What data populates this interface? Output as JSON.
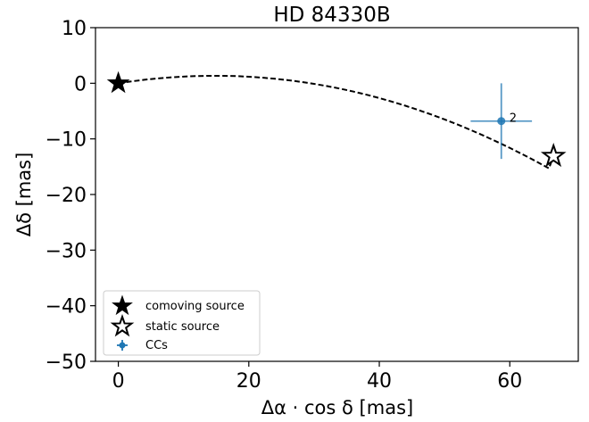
{
  "chart_data": {
    "type": "scatter",
    "title": "HD 84330B",
    "xlabel": "Δα · cos δ [mas]",
    "ylabel": "Δδ [mas]",
    "xlim": [
      -3.5,
      70.5
    ],
    "ylim": [
      -50,
      10
    ],
    "xticks": [
      0,
      20,
      40,
      60
    ],
    "yticks": [
      10,
      0,
      -10,
      -20,
      -30,
      -40,
      -50
    ],
    "grid": false,
    "legend_position": "lower-left",
    "legend": [
      {
        "label": "comoving source",
        "marker": "filled-star"
      },
      {
        "label": "static source",
        "marker": "open-star"
      },
      {
        "label": "CCs",
        "marker": "errorbar-point"
      }
    ],
    "comoving_source": {
      "x": 0,
      "y": 0
    },
    "static_source": {
      "x": 66.7,
      "y": -13.1
    },
    "track": {
      "style": "dashed",
      "x": [
        0,
        2,
        4,
        6,
        8,
        10,
        12,
        14,
        16,
        18,
        20,
        22,
        24,
        26,
        28,
        30,
        32,
        34,
        36,
        38,
        40,
        42,
        44,
        46,
        48,
        50,
        52,
        54,
        56,
        58,
        60,
        62,
        64,
        66,
        66.7
      ],
      "y": [
        0,
        0.34,
        0.63,
        0.87,
        1.06,
        1.2,
        1.3,
        1.34,
        1.34,
        1.29,
        1.18,
        1.02,
        0.81,
        0.56,
        0.25,
        -0.11,
        -0.51,
        -0.97,
        -1.48,
        -2.04,
        -2.66,
        -3.32,
        -4.04,
        -4.81,
        -5.63,
        -6.5,
        -7.42,
        -8.4,
        -9.42,
        -10.5,
        -11.62,
        -12.8,
        -14.02,
        -15.3,
        -13.1
      ]
    },
    "series": [
      {
        "name": "CCs",
        "color": "#1f77b4",
        "points": [
          {
            "x": 58.7,
            "y": -6.8,
            "xerr": 4.7,
            "yerr": 6.8,
            "label": "2"
          }
        ]
      }
    ]
  }
}
